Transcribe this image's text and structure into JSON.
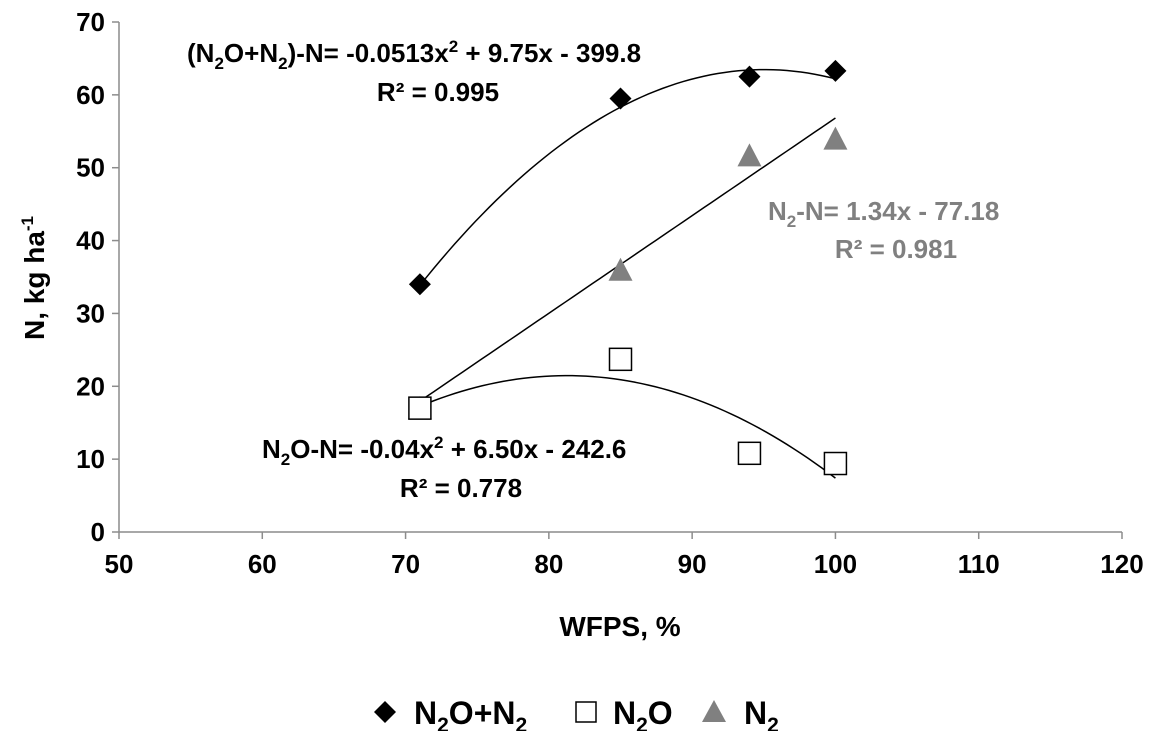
{
  "chart_data": {
    "type": "scatter",
    "xlabel": "WFPS, %",
    "ylabel": {
      "main": "N, kg ha",
      "sup": "-1"
    },
    "xlim": [
      50,
      120
    ],
    "ylim": [
      0,
      70
    ],
    "xticks": [
      "50",
      "60",
      "70",
      "80",
      "90",
      "100",
      "110",
      "120"
    ],
    "yticks": [
      "0",
      "10",
      "20",
      "30",
      "40",
      "50",
      "60",
      "70"
    ],
    "grid": false,
    "legend_position": "bottom",
    "series": [
      {
        "id": "total",
        "name": "N2O+N2",
        "legend": {
          "a": "N",
          "s1": "2",
          "b": "O+N",
          "s2": "2"
        },
        "marker": "diamond",
        "color": "#000000",
        "x": [
          71,
          85,
          94,
          100
        ],
        "y": [
          34,
          59.5,
          62.5,
          63.3
        ],
        "trend": {
          "type": "poly2",
          "a": -0.0513,
          "b": 9.75,
          "c": -399.8,
          "r2": 0.995,
          "range": [
            71,
            100
          ]
        },
        "equation": {
          "p1": "(N",
          "s1": "2",
          "p2": "O+N",
          "s2": "2",
          "p3": ")-N= -0.0513x",
          "sup": "2",
          "p4": " + 9.75x - 399.8",
          "r2": "R² = 0.995"
        }
      },
      {
        "id": "n2o",
        "name": "N2O",
        "legend": {
          "a": "N",
          "s1": "2",
          "b": "O"
        },
        "marker": "square-open",
        "color": "#000000",
        "x": [
          71,
          85,
          94,
          100
        ],
        "y": [
          17,
          23.7,
          10.8,
          9.4
        ],
        "trend": {
          "type": "poly2",
          "a": -0.04,
          "b": 6.5,
          "c": -242.6,
          "r2": 0.778,
          "range": [
            71,
            100
          ]
        },
        "equation": {
          "p1": "N",
          "s1": "2",
          "p2": "O-N= -0.04x",
          "sup": "2",
          "p3": " + 6.50x - 242.6",
          "r2": "R² = 0.778"
        }
      },
      {
        "id": "n2",
        "name": "N2",
        "legend": {
          "a": "N",
          "s1": "2"
        },
        "marker": "triangle",
        "color": "#808080",
        "x": [
          71,
          85,
          94,
          100
        ],
        "y": [
          17,
          36,
          51.7,
          54
        ],
        "trend": {
          "type": "linear",
          "a": 1.34,
          "b": -77.18,
          "r2": 0.981,
          "range": [
            71,
            100
          ]
        },
        "equation": {
          "p1": "N",
          "s1": "2",
          "p2": "-N= 1.34x - 77.18",
          "r2": "R² = 0.981"
        }
      }
    ]
  }
}
